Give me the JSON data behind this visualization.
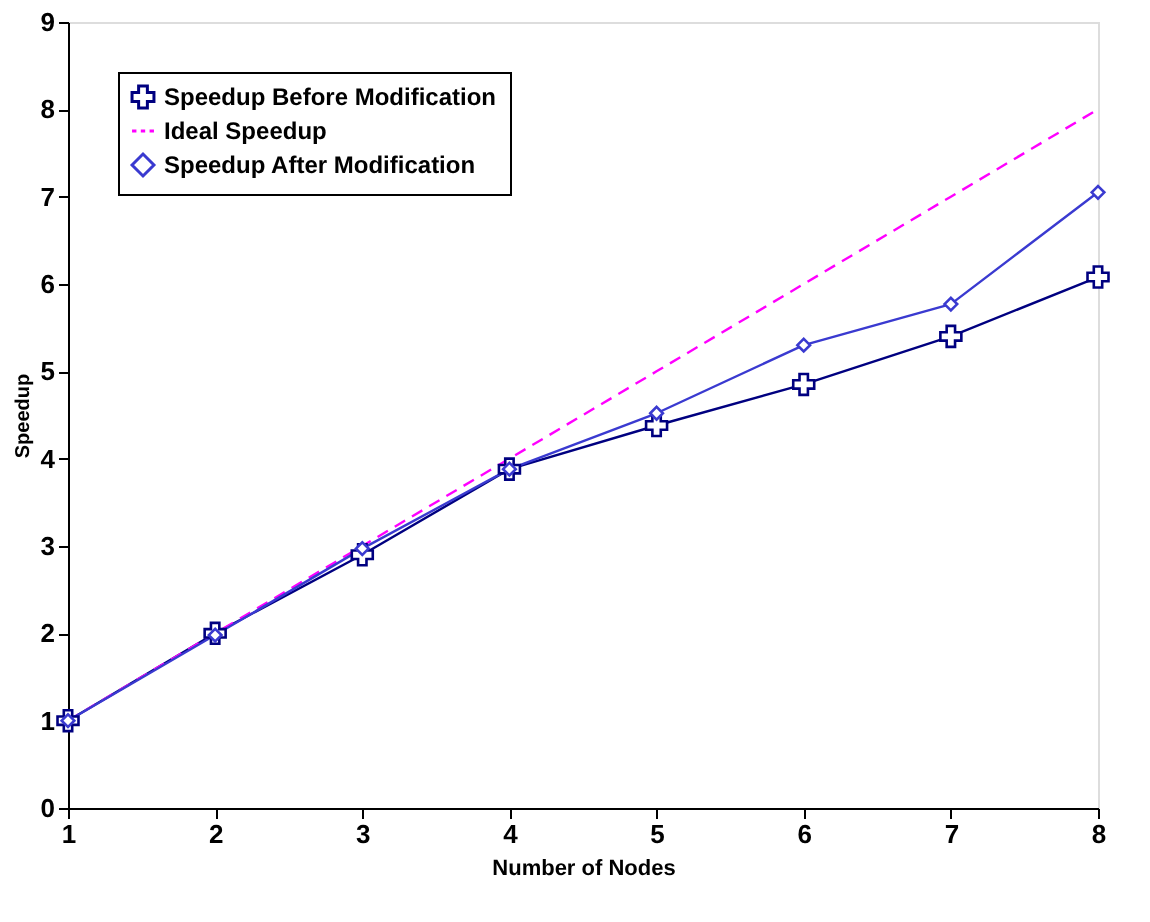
{
  "chart_data": {
    "type": "line",
    "xlabel": "Number of Nodes",
    "ylabel": "Speedup",
    "x": [
      1,
      2,
      3,
      4,
      5,
      6,
      7,
      8
    ],
    "series": [
      {
        "name": "Speedup Before Modification",
        "color": "#000080",
        "marker": "cross",
        "line_style": "solid",
        "values": [
          1,
          2,
          2.9,
          3.88,
          4.38,
          4.85,
          5.4,
          6.08
        ]
      },
      {
        "name": "Ideal Speedup",
        "color": "#ff00ff",
        "marker": "none",
        "line_style": "dashed",
        "values": [
          1,
          2,
          3,
          4,
          5,
          6,
          7,
          8
        ]
      },
      {
        "name": "Speedup After Modification",
        "color": "#3a3ad0",
        "marker": "diamond",
        "line_style": "solid",
        "values": [
          1,
          1.98,
          2.97,
          3.88,
          4.52,
          5.3,
          5.77,
          7.05
        ]
      }
    ],
    "xlim": [
      1,
      8
    ],
    "xticks": [
      1,
      2,
      3,
      4,
      5,
      6,
      7,
      8
    ],
    "ylim": [
      0,
      9
    ],
    "yticks": [
      0,
      1,
      2,
      3,
      4,
      5,
      6,
      7,
      8,
      9
    ],
    "grid": false,
    "legend": "top left"
  }
}
